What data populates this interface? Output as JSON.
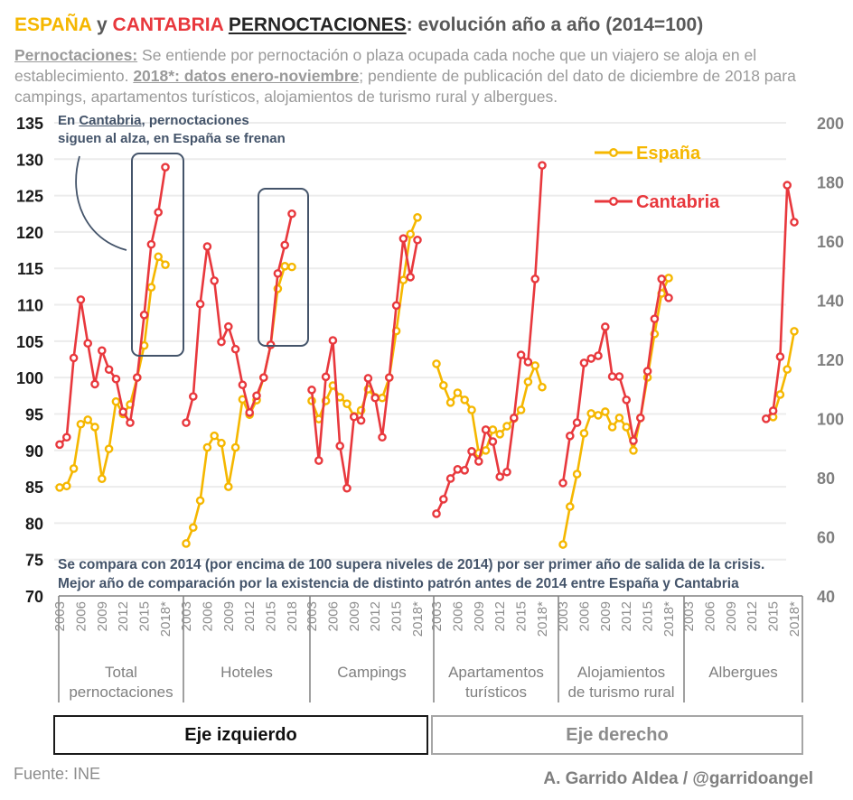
{
  "header": {
    "title_espana": "ESPAÑA",
    "title_y": " y ",
    "title_cantabria": "CANTABRIA",
    "title_space": " ",
    "title_pernoctaciones": "PERNOCTACIONES",
    "title_rest": ": evolución año a año (2014=100)",
    "sub_term": "Pernoctaciones:",
    "sub_text1": " Se entiende por pernoctación o plaza ocupada cada noche que un viajero se aloja en el establecimiento. ",
    "sub_bold": "2018*: datos enero-noviembre",
    "sub_text2": "; pendiente de publicación del dato de diciembre de 2018 para campings, apartamentos turísticos, alojamientos de turismo rural y albergues."
  },
  "annotation": {
    "part1": "En ",
    "cantabria": "Cantabria",
    "part2": ", pernoctaciones",
    "line2": "siguen al alza, en España se frenan"
  },
  "note": {
    "line1": "Se compara con 2014 (por encima de 100 supera niveles de 2014) por ser primer año de salida de la crisis.",
    "line2": "Mejor año de comparación por la existencia de distinto patrón antes de 2014 entre España y Cantabria"
  },
  "buttons": {
    "left_axis": "Eje izquierdo",
    "right_axis": "Eje derecho"
  },
  "footer": {
    "source": "Fuente: INE",
    "author": "A. Garrido Aldea / @garridoangel"
  },
  "colors": {
    "espana": "#f5b700",
    "cantabria": "#e8383d",
    "annotation": "#44546a",
    "grid": "#ececec"
  },
  "chart_data": {
    "type": "line",
    "title": "ESPAÑA y CANTABRIA PERNOCTACIONES: evolución año a año (2014=100)",
    "legend": {
      "placement": "top-right",
      "entries": [
        "España",
        "Cantabria"
      ]
    },
    "left_axis": {
      "ylim": [
        70,
        135
      ],
      "ticks": [
        "135",
        "130",
        "125",
        "120",
        "115",
        "110",
        "105",
        "100",
        "95",
        "90",
        "85",
        "80",
        "75",
        "70"
      ]
    },
    "right_axis": {
      "ylim": [
        40,
        200
      ],
      "ticks": [
        "200",
        "180",
        "160",
        "140",
        "120",
        "100",
        "80",
        "60",
        "40"
      ]
    },
    "years": [
      "2003",
      "2004",
      "2005",
      "2006",
      "2007",
      "2008",
      "2009",
      "2010",
      "2011",
      "2012",
      "2013",
      "2014",
      "2015",
      "2016",
      "2017",
      "2018*"
    ],
    "groups": [
      {
        "name": "Total pernoctaciones",
        "label_lines": [
          "Total",
          "pernoctaciones"
        ],
        "axis": "left",
        "tick_labels": [
          "2003",
          "2006",
          "2009",
          "2012",
          "2015",
          "2018*"
        ],
        "series": [
          {
            "name": "España",
            "values": [
              84.9,
              85.1,
              87.5,
              93.6,
              94.2,
              93.2,
              86.1,
              90.2,
              96.7,
              95.0,
              96.3,
              100.0,
              104.4,
              112.4,
              116.6,
              115.5
            ]
          },
          {
            "name": "Cantabria",
            "values": [
              90.8,
              91.8,
              102.7,
              110.7,
              104.7,
              99.1,
              103.7,
              101.1,
              99.8,
              95.3,
              93.8,
              100.0,
              108.6,
              118.3,
              122.7,
              128.9
            ]
          }
        ]
      },
      {
        "name": "Hoteles",
        "label_lines": [
          "Hoteles"
        ],
        "axis": "left",
        "tick_labels": [
          "2003",
          "2006",
          "2009",
          "2012",
          "2015",
          "2018"
        ],
        "series": [
          {
            "name": "España",
            "values": [
              77.2,
              79.4,
              83.1,
              90.4,
              92.0,
              91.0,
              85.0,
              90.4,
              97.0,
              94.9,
              96.9,
              100.0,
              104.5,
              112.2,
              115.3,
              115.2
            ]
          },
          {
            "name": "Cantabria",
            "values": [
              93.8,
              97.4,
              110.1,
              118.0,
              113.3,
              104.9,
              107.0,
              103.9,
              99.0,
              95.2,
              97.5,
              100.0,
              104.5,
              114.3,
              118.2,
              122.5
            ]
          }
        ]
      },
      {
        "name": "Campings",
        "label_lines": [
          "Campings"
        ],
        "axis": "left",
        "tick_labels": [
          "2003",
          "2006",
          "2009",
          "2012",
          "2015",
          "2018*"
        ],
        "series": [
          {
            "name": "España",
            "values": [
              96.8,
              94.3,
              96.8,
              98.9,
              97.3,
              96.4,
              94.7,
              95.5,
              98.4,
              97.3,
              97.2,
              100.0,
              106.4,
              113.4,
              119.7,
              122.0
            ]
          },
          {
            "name": "Cantabria",
            "values": [
              98.3,
              88.6,
              100.1,
              105.1,
              90.6,
              84.8,
              94.6,
              94.1,
              99.9,
              97.2,
              91.8,
              100.0,
              109.9,
              119.1,
              113.8,
              118.9
            ]
          }
        ]
      },
      {
        "name": "Apartamentos turísticos",
        "label_lines": [
          "Apartamentos",
          "turísticos"
        ],
        "axis": "right",
        "tick_labels": [
          "2003",
          "2006",
          "2009",
          "2012",
          "2015",
          "2018*"
        ],
        "series": [
          {
            "name": "España",
            "values": [
              118.5,
              111.2,
              105.4,
              108.7,
              106.3,
              102.9,
              88.3,
              89.2,
              96.2,
              94.7,
              97.4,
              100.0,
              102.9,
              112.4,
              117.9,
              110.6
            ]
          },
          {
            "name": "Cantabria",
            "values": [
              67.8,
              72.7,
              79.7,
              82.8,
              82.5,
              88.9,
              85.5,
              96.2,
              92.2,
              80.3,
              81.9,
              100.2,
              121.5,
              119.1,
              147.2,
              185.6
            ]
          }
        ]
      },
      {
        "name": "Alojamientos de turismo rural",
        "label_lines": [
          "Alojamientos",
          "de turismo rural"
        ],
        "axis": "right",
        "tick_labels": [
          "2003",
          "2006",
          "2009",
          "2012",
          "2015",
          "2018*"
        ],
        "series": [
          {
            "name": "España",
            "values": [
              57.4,
              70.2,
              81.2,
              95.0,
              101.7,
              101.1,
              102.3,
              97.1,
              100.2,
              97.1,
              89.2,
              100.2,
              113.9,
              128.6,
              142.3,
              147.5
            ]
          },
          {
            "name": "Cantabria",
            "values": [
              78.2,
              94.1,
              98.6,
              118.8,
              120.3,
              121.2,
              131.0,
              114.2,
              114.2,
              106.3,
              92.5,
              100.2,
              116.0,
              133.7,
              147.2,
              140.8
            ]
          }
        ]
      },
      {
        "name": "Albergues",
        "label_lines": [
          "Albergues"
        ],
        "axis": "right",
        "tick_labels": [
          "2003",
          "2006",
          "2009",
          "2012",
          "2015",
          "2018*"
        ],
        "series": [
          {
            "name": "España",
            "values": [
              null,
              null,
              null,
              null,
              null,
              null,
              null,
              null,
              null,
              null,
              null,
              null,
              100.5,
              108.1,
              116.6,
              129.5
            ]
          },
          {
            "name": "Cantabria",
            "values": [
              null,
              null,
              null,
              null,
              null,
              null,
              null,
              null,
              null,
              null,
              null,
              99.9,
              102.6,
              120.9,
              178.9,
              166.4
            ]
          }
        ]
      }
    ],
    "highlights": [
      "Total pernoctaciones 2015-2018*",
      "Hoteles 2015-2018"
    ]
  }
}
